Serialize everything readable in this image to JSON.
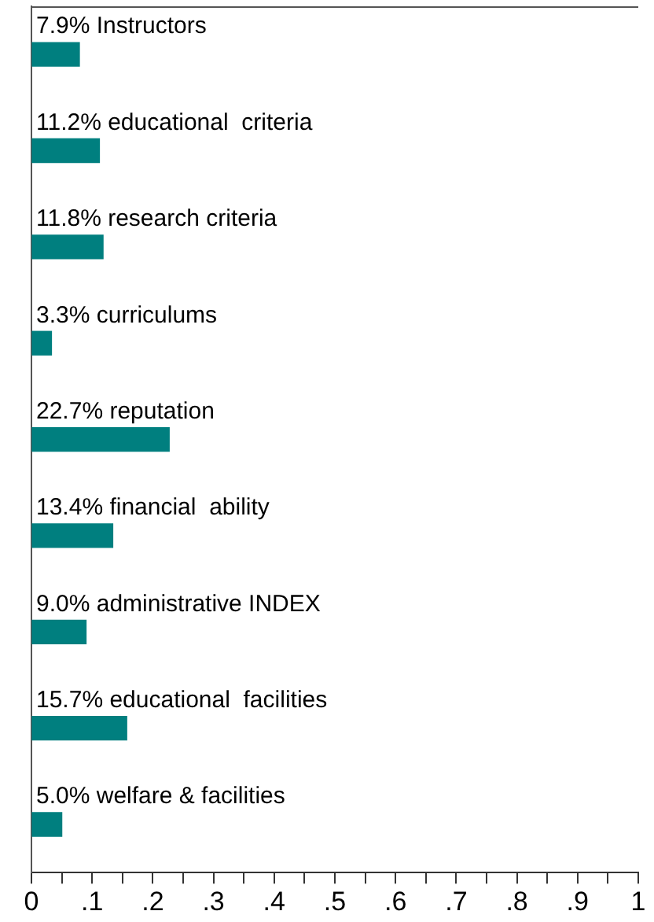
{
  "chart_data": {
    "type": "bar",
    "orientation": "horizontal",
    "categories": [
      "Instructors",
      "educational  criteria",
      "research criteria",
      "curriculums",
      "reputation",
      "financial  ability",
      "administrative INDEX",
      "educational  facilities",
      "welfare & facilities"
    ],
    "values": [
      0.079,
      0.112,
      0.118,
      0.033,
      0.227,
      0.134,
      0.09,
      0.157,
      0.05
    ],
    "value_labels": [
      "7.9%",
      "11.2%",
      "11.8%",
      "3.3%",
      "22.7%",
      "13.4%",
      "9.0%",
      "15.7%",
      "5.0%"
    ],
    "color": "#007f7f",
    "xlim": [
      0,
      1
    ],
    "xticks": [
      0,
      {
        "value": 0.05,
        "label": null
      },
      {
        "value": 0.1,
        "label": ".1"
      },
      {
        "value": 0.15,
        "label": null
      },
      {
        "value": 0.2,
        "label": ".2"
      },
      {
        "value": 0.25,
        "label": null
      },
      {
        "value": 0.3,
        "label": ".3"
      },
      {
        "value": 0.35,
        "label": null
      },
      {
        "value": 0.4,
        "label": ".4"
      },
      {
        "value": 0.45,
        "label": null
      },
      {
        "value": 0.5,
        "label": ".5"
      },
      {
        "value": 0.55,
        "label": null
      },
      {
        "value": 0.6,
        "label": ".6"
      },
      {
        "value": 0.65,
        "label": null
      },
      {
        "value": 0.7,
        "label": ".7"
      },
      {
        "value": 0.75,
        "label": null
      },
      {
        "value": 0.8,
        "label": ".8"
      },
      {
        "value": 0.85,
        "label": null
      },
      {
        "value": 0.9,
        "label": ".9"
      },
      {
        "value": 0.95,
        "label": null
      },
      {
        "value": 1,
        "label": "1"
      }
    ],
    "grid": false,
    "legend": false
  }
}
